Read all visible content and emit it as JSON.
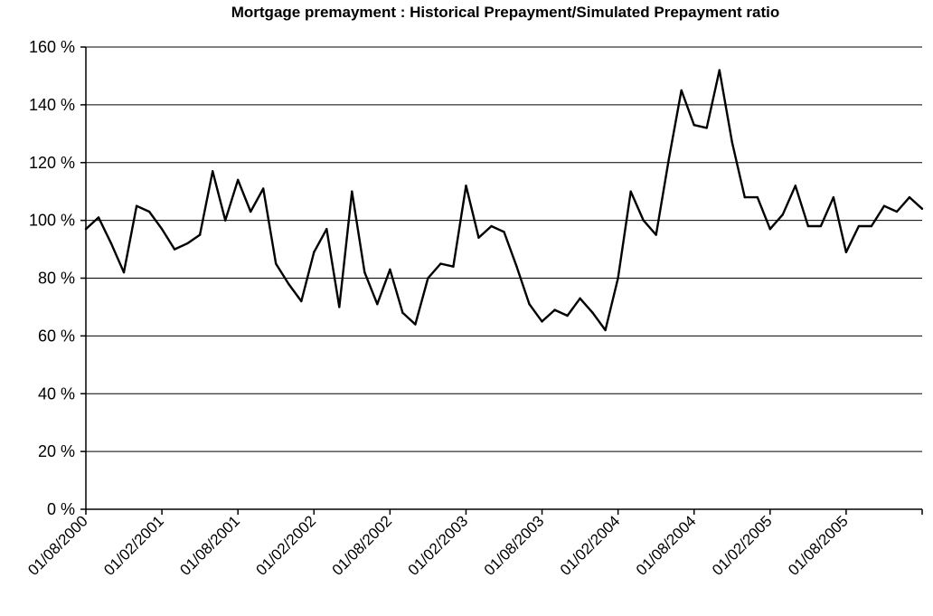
{
  "chart_data": {
    "type": "line",
    "title": "Mortgage premayment : Historical Prepayment/Simulated Prepayment ratio",
    "xlabel": "",
    "ylabel": "",
    "ylim": [
      0,
      160
    ],
    "y_ticks": [
      0,
      20,
      40,
      60,
      80,
      100,
      120,
      140,
      160
    ],
    "y_tick_labels": [
      "0 %",
      "20 %",
      "40 %",
      "60 %",
      "80 %",
      "100 %",
      "120 %",
      "140 %",
      "160 %"
    ],
    "x_tick_labels": [
      "01/08/2000",
      "01/02/2001",
      "01/08/2001",
      "01/02/2002",
      "01/08/2002",
      "01/02/2003",
      "01/08/2003",
      "01/02/2004",
      "01/08/2004",
      "01/02/2005",
      "01/08/2005"
    ],
    "x_range": [
      "2000-08",
      "2006-02"
    ],
    "grid": "horizontal",
    "line_color": "#000000",
    "series": [
      {
        "x": [
          "2000-08",
          "2000-09",
          "2000-10",
          "2000-11",
          "2000-12",
          "2001-01",
          "2001-02",
          "2001-03",
          "2001-04",
          "2001-05",
          "2001-06",
          "2001-07",
          "2001-08",
          "2001-09",
          "2001-10",
          "2001-11",
          "2001-12",
          "2002-01",
          "2002-02",
          "2002-03",
          "2002-04",
          "2002-05",
          "2002-06",
          "2002-07",
          "2002-08",
          "2002-09",
          "2002-10",
          "2002-11",
          "2002-12",
          "2003-01",
          "2003-02",
          "2003-03",
          "2003-04",
          "2003-05",
          "2003-06",
          "2003-07",
          "2003-08",
          "2003-09",
          "2003-10",
          "2003-11",
          "2003-12",
          "2004-01",
          "2004-02",
          "2004-03",
          "2004-04",
          "2004-05",
          "2004-06",
          "2004-07",
          "2004-08",
          "2004-09",
          "2004-10",
          "2004-11",
          "2004-12",
          "2005-01",
          "2005-02",
          "2005-03",
          "2005-04",
          "2005-05",
          "2005-06",
          "2005-07",
          "2005-08",
          "2005-09",
          "2005-10",
          "2005-11",
          "2005-12",
          "2006-01",
          "2006-02"
        ],
        "values": [
          97,
          101,
          92,
          82,
          105,
          103,
          97,
          90,
          92,
          95,
          117,
          100,
          114,
          103,
          111,
          85,
          78,
          72,
          89,
          97,
          70,
          110,
          82,
          71,
          83,
          68,
          64,
          80,
          85,
          84,
          112,
          94,
          98,
          96,
          84,
          71,
          65,
          69,
          67,
          73,
          68,
          62,
          80,
          110,
          100,
          95,
          121,
          145,
          133,
          132,
          152,
          127,
          108,
          108,
          97,
          102,
          112,
          98,
          98,
          108,
          89,
          98,
          98,
          105,
          103,
          108,
          104
        ]
      }
    ]
  }
}
